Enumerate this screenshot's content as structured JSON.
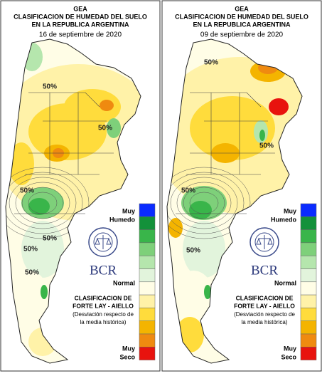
{
  "legend": {
    "colors": [
      "#0a2bff",
      "#13913a",
      "#39b54a",
      "#7ed07a",
      "#b5e6ad",
      "#e2f4dc",
      "#fffde6",
      "#fff2a8",
      "#ffdc3c",
      "#f4b400",
      "#ef8a10",
      "#e8130e"
    ]
  },
  "panels": [
    {
      "title": [
        "GEA",
        "CLASIFICACION DE HUMEDAD DEL SUELO",
        "EN LA REPUBLICA ARGENTINA"
      ],
      "date": "16 de septiembre de 2020",
      "legend_top": [
        "Muy",
        "Humedo"
      ],
      "legend_mid": "Normal",
      "legend_bottom": [
        "Muy",
        "Seco"
      ],
      "logo": "BCR",
      "method": [
        "CLASIFICACION DE",
        "FORTE LAY - AIELLO"
      ],
      "note": [
        "(Desviación respecto de",
        "la media histórica)"
      ],
      "contour_labels": [
        "50%",
        "50%",
        "50%",
        "50%",
        "50%",
        "50%"
      ]
    },
    {
      "title": [
        "GEA",
        "CLASIFICACION DE HUMEDAD DEL SUELO",
        "EN LA REPUBLICA ARGENTINA"
      ],
      "date": "09 de septiembre de 2020",
      "legend_top": [
        "Muy",
        "Humedo"
      ],
      "legend_mid": "Normal",
      "legend_bottom": [
        "Muy",
        "Seco"
      ],
      "logo": "BCR",
      "method": [
        "CLASIFICACION DE",
        "FORTE LAY - AIELLO"
      ],
      "note": [
        "(Desviación respecto de",
        "la media histórica)"
      ],
      "contour_labels": [
        "50%",
        "50%",
        "50%",
        "50%"
      ]
    }
  ]
}
